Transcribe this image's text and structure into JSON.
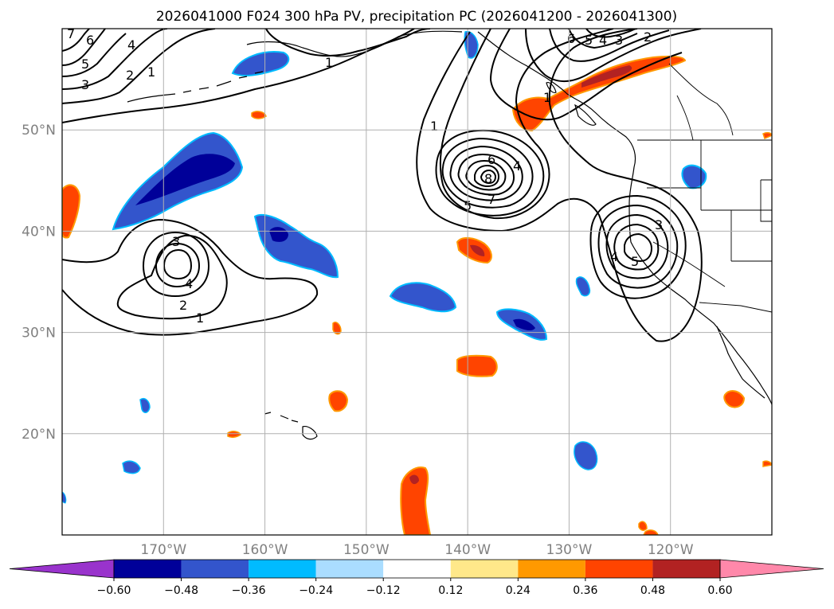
{
  "title": "2026041000 F024 300 hPa PV, precipitation PC (2026041200 - 2026041300)",
  "map": {
    "lon_range": [
      -180,
      -110
    ],
    "lat_range": [
      10,
      60
    ],
    "lon_ticks": [
      {
        "lon": -170,
        "label": "170°W"
      },
      {
        "lon": -160,
        "label": "160°W"
      },
      {
        "lon": -150,
        "label": "150°W"
      },
      {
        "lon": -140,
        "label": "140°W"
      },
      {
        "lon": -130,
        "label": "130°W"
      },
      {
        "lon": -120,
        "label": "120°W"
      }
    ],
    "lat_ticks": [
      {
        "lat": 50,
        "label": "50°N"
      },
      {
        "lat": 40,
        "label": "40°N"
      },
      {
        "lat": 30,
        "label": "30°N"
      },
      {
        "lat": 20,
        "label": "20°N"
      }
    ]
  },
  "colorbar": {
    "labels": [
      "−0.60",
      "−0.48",
      "−0.36",
      "−0.24",
      "−0.12",
      "0.12",
      "0.24",
      "0.36",
      "0.48",
      "0.60"
    ],
    "colors": {
      "neg_extend": "#9933cc",
      "bins": [
        "#000099",
        "#3355cc",
        "#00bbff",
        "#aaddff",
        "#ffffff",
        "#ffe88a",
        "#ff9900",
        "#ff4400",
        "#b22222"
      ],
      "pos_extend": "#ff88aa"
    }
  },
  "pv_contours": {
    "labels": [
      "1",
      "2",
      "3",
      "4",
      "5",
      "6",
      "7",
      "8"
    ]
  },
  "colors": {
    "grid": "#b0b0b0",
    "coast": "#000000",
    "contour": "#000000",
    "axis_text": "#808080"
  }
}
